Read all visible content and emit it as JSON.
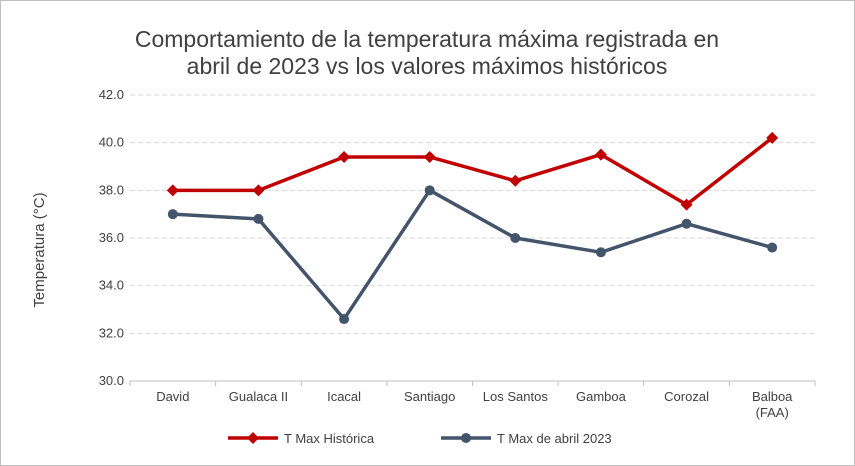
{
  "chart_data": {
    "type": "line",
    "title": "Comportamiento de la temperatura máxima registrada en abril de 2023 vs los valores máximos históricos",
    "title_lines": [
      "Comportamiento de la temperatura máxima registrada en",
      "abril de 2023 vs los valores máximos históricos"
    ],
    "xlabel": "",
    "ylabel": "Temperatura (°C)",
    "ylim": [
      30,
      42
    ],
    "yticks": [
      "30.0",
      "32.0",
      "34.0",
      "36.0",
      "38.0",
      "40.0",
      "42.0"
    ],
    "grid": true,
    "legend_position": "bottom",
    "categories": [
      "David",
      "Gualaca II",
      "Icacal",
      "Santiago",
      "Los Santos",
      "Gamboa",
      "Corozal",
      "Balboa (FAA)"
    ],
    "category_lines": [
      [
        "David"
      ],
      [
        "Gualaca II"
      ],
      [
        "Icacal"
      ],
      [
        "Santiago"
      ],
      [
        "Los Santos"
      ],
      [
        "Gamboa"
      ],
      [
        "Corozal"
      ],
      [
        "Balboa",
        "(FAA)"
      ]
    ],
    "series": [
      {
        "name": "T Max Histórica",
        "color": "#c00000",
        "marker": "diamond",
        "values": [
          38.0,
          38.0,
          39.4,
          39.4,
          38.4,
          39.5,
          37.4,
          40.2
        ]
      },
      {
        "name": "T Max de abril 2023",
        "color": "#44546a",
        "marker": "circle",
        "values": [
          37.0,
          36.8,
          32.6,
          38.0,
          36.0,
          35.4,
          36.6,
          35.6
        ]
      }
    ]
  }
}
